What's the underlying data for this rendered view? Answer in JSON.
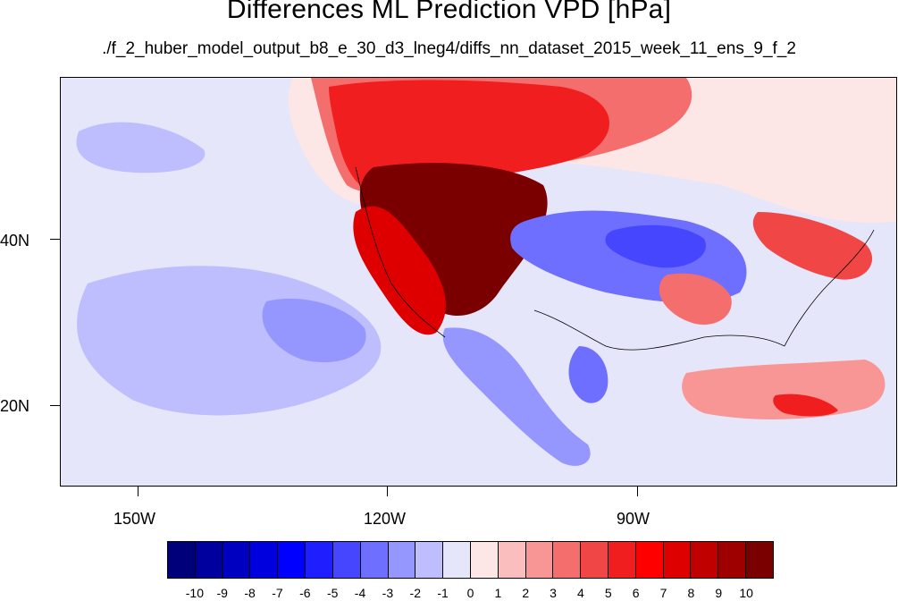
{
  "title": "Differences ML Prediction VPD [hPa]",
  "subtitle": "./f_2_huber_model_output_b8_e_30_d3_lneg4/diffs_nn_dataset_2015_week_11_ens_9_f_2",
  "axes": {
    "lat_labels": [
      "40N",
      "20N"
    ],
    "lon_labels": [
      "150W",
      "120W",
      "90W"
    ]
  },
  "colorbar": {
    "tick_labels": [
      "-10",
      "-9",
      "-8",
      "-7",
      "-6",
      "-5",
      "-4",
      "-3",
      "-2",
      "-1",
      "0",
      "1",
      "2",
      "3",
      "4",
      "5",
      "6",
      "7",
      "8",
      "9",
      "10"
    ],
    "colors": [
      "#00007a",
      "#00009e",
      "#0000c0",
      "#0000de",
      "#0000ff",
      "#1e1eff",
      "#4646ff",
      "#6e6eff",
      "#9696ff",
      "#bebeff",
      "#e6e6fa",
      "#fde6e6",
      "#fbbebe",
      "#f89696",
      "#f46e6e",
      "#f04646",
      "#f01e1e",
      "#ff0000",
      "#de0000",
      "#c00000",
      "#9e0000",
      "#7a0000"
    ]
  },
  "palette": {
    "neutral_blue": "#e6e6fa",
    "neutral_pink": "#fde6e6",
    "strong_red": "#8b0000",
    "strong_blue": "#2a2ae0"
  }
}
